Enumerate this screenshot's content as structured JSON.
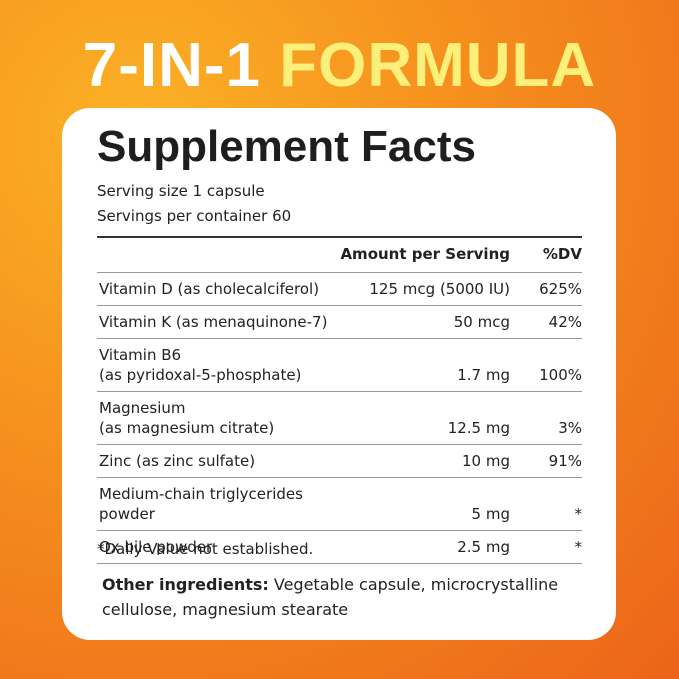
{
  "header": {
    "title_white": "7-IN-1",
    "title_yellow": "FORMULA"
  },
  "facts": {
    "title": "Supplement Facts",
    "serving_size": "Serving size 1 capsule",
    "servings_per_container": "Servings per container 60",
    "columns": {
      "amount": "Amount per Serving",
      "dv": "%DV"
    },
    "rows": [
      {
        "name": [
          "Vitamin D (as cholecalciferol)"
        ],
        "amount": "125 mcg (5000 IU)",
        "dv": "625%"
      },
      {
        "name": [
          "Vitamin K (as menaquinone-7)"
        ],
        "amount": "50 mcg",
        "dv": "42%"
      },
      {
        "name": [
          "Vitamin B6",
          "(as pyridoxal-5-phosphate)"
        ],
        "amount": "1.7 mg",
        "dv": "100%"
      },
      {
        "name": [
          "Magnesium",
          "(as magnesium citrate)"
        ],
        "amount": "12.5 mg",
        "dv": "3%"
      },
      {
        "name": [
          "Zinc (as zinc sulfate)"
        ],
        "amount": "10 mg",
        "dv": "91%"
      },
      {
        "name": [
          "Medium-chain triglycerides powder"
        ],
        "amount": "5 mg",
        "dv": "*"
      },
      {
        "name": [
          "Ox bile powder"
        ],
        "amount": "2.5 mg",
        "dv": "*"
      }
    ],
    "footnote": "*Daily Value not established.",
    "other_label": "Other ingredients:",
    "other_lines": [
      "Vegetable capsule, microcrystalline",
      "cellulose, magnesium stearate"
    ]
  }
}
